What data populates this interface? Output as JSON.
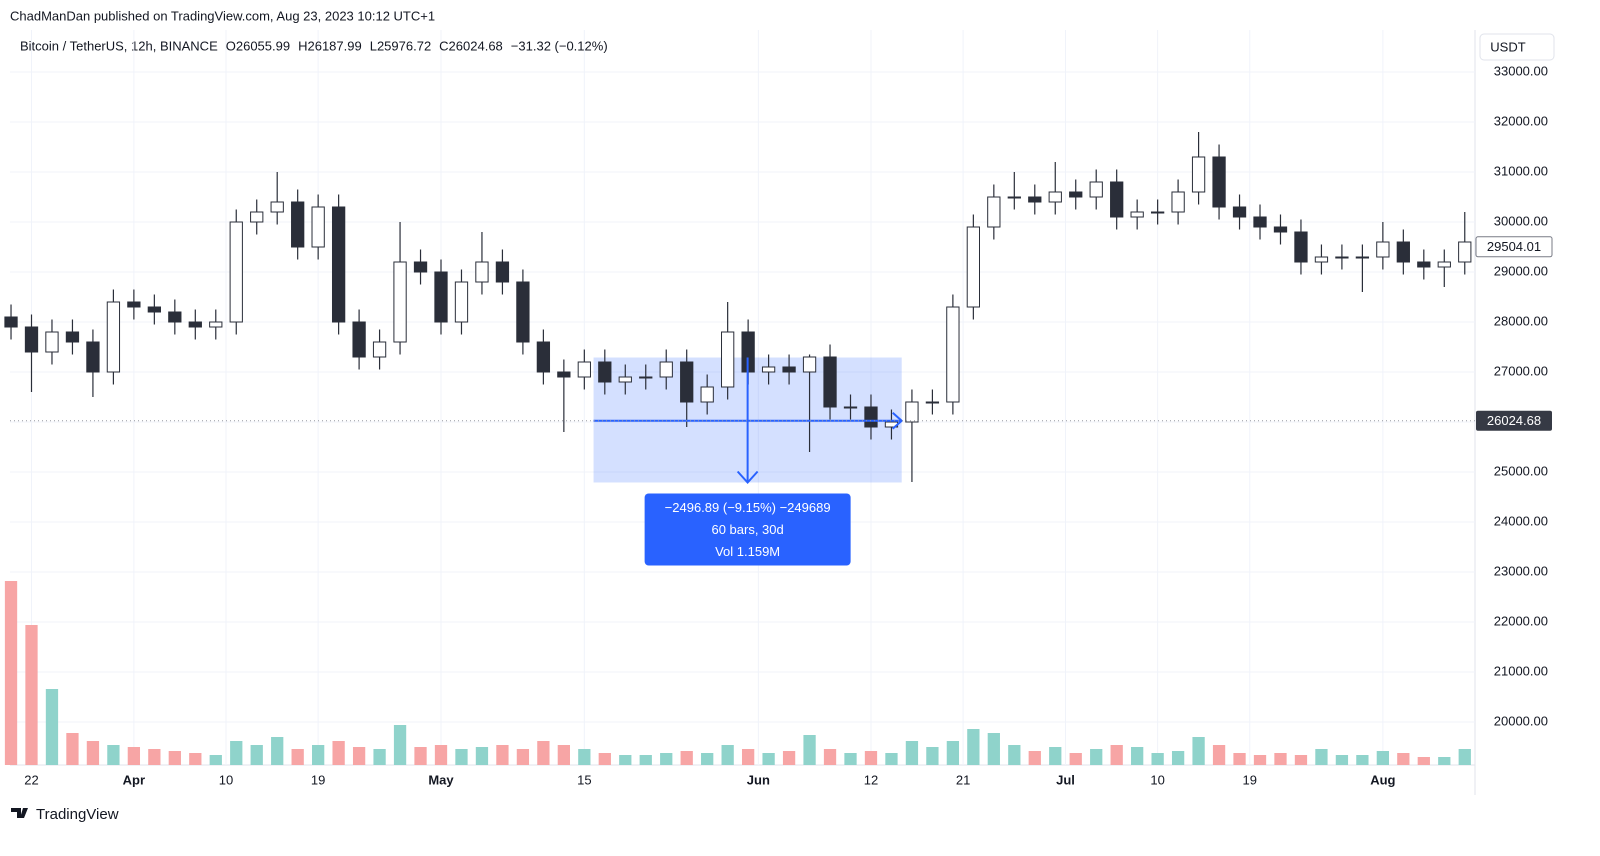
{
  "header": {
    "publisher": "ChadManDan published on TradingView.com, Aug 23, 2023 10:12 UTC+1",
    "symbol": "Bitcoin / TetherUS, 12h, BINANCE",
    "ohlc": [
      "O26055.99",
      "H26187.99",
      "L25976.72",
      "C26024.68",
      "−31.32 (−0.12%)"
    ],
    "currency": "USDT",
    "logo": "TradingView"
  },
  "chart_data": {
    "type": "candlestick",
    "x": [
      0,
      2,
      4,
      6,
      8,
      10,
      12,
      14,
      16,
      18,
      20,
      22,
      24,
      26,
      28,
      30,
      32,
      34,
      36,
      38,
      40,
      42,
      44,
      46,
      48,
      50,
      52,
      54,
      56,
      58,
      60,
      62,
      64,
      66,
      68,
      70,
      72,
      74,
      76,
      78,
      80,
      82,
      84,
      86,
      88,
      90,
      92,
      94,
      96,
      98,
      100,
      102,
      104,
      106,
      108,
      110,
      112,
      114,
      116,
      118,
      120,
      122,
      124,
      126,
      128,
      130,
      132,
      134,
      136,
      138,
      140,
      142
    ],
    "open": [
      28100,
      27900,
      27400,
      27800,
      27600,
      27000,
      28400,
      28300,
      28200,
      28000,
      27900,
      28000,
      30000,
      30200,
      30400,
      29500,
      30300,
      28000,
      27300,
      27600,
      29200,
      29000,
      28000,
      28800,
      29200,
      28800,
      27600,
      27000,
      26900,
      27200,
      26800,
      26900,
      26900,
      27200,
      26400,
      26700,
      27800,
      27000,
      27100,
      27000,
      27300,
      26300,
      26300,
      25900,
      26000,
      26400,
      26400,
      28300,
      29900,
      30500,
      30500,
      30400,
      30600,
      30500,
      30800,
      30100,
      30200,
      30200,
      30600,
      31300,
      30300,
      30100,
      29900,
      29800,
      29200,
      29300,
      29300,
      29300,
      29600,
      29200,
      29100,
      29200
    ],
    "high": [
      28350,
      28150,
      28050,
      28050,
      27850,
      28650,
      28650,
      28550,
      28450,
      28250,
      28250,
      30250,
      30450,
      31000,
      30650,
      30550,
      30550,
      28250,
      27850,
      30000,
      29450,
      29250,
      29050,
      29800,
      29450,
      29050,
      27850,
      27250,
      27450,
      27450,
      27150,
      27150,
      27450,
      27450,
      26950,
      28400,
      28050,
      27350,
      27350,
      27350,
      27550,
      26550,
      26550,
      26250,
      26650,
      26650,
      28550,
      30150,
      30750,
      31000,
      30750,
      31200,
      30850,
      31050,
      31050,
      30450,
      30450,
      30850,
      31800,
      31550,
      30550,
      30350,
      30150,
      30050,
      29550,
      29550,
      29550,
      30000,
      29850,
      29450,
      29450,
      30200
    ],
    "low": [
      27650,
      26600,
      27150,
      27350,
      26500,
      26750,
      28050,
      27950,
      27750,
      27650,
      27650,
      27750,
      29750,
      29950,
      29250,
      29250,
      27750,
      27050,
      27050,
      27350,
      28750,
      27750,
      27750,
      28550,
      28550,
      27350,
      26750,
      25800,
      26650,
      26550,
      26550,
      26650,
      26650,
      25900,
      26150,
      26450,
      26750,
      26750,
      26750,
      25400,
      26050,
      26050,
      25650,
      25650,
      24800,
      26150,
      26150,
      28050,
      29650,
      30250,
      30150,
      30150,
      30250,
      30250,
      29850,
      29850,
      29950,
      29950,
      30350,
      30050,
      29850,
      29650,
      29550,
      28950,
      28950,
      29050,
      28600,
      29050,
      28950,
      28850,
      28700,
      28950
    ],
    "close": [
      27900,
      27400,
      27800,
      27600,
      27000,
      28400,
      28300,
      28200,
      28000,
      27900,
      28000,
      30000,
      30200,
      30400,
      29500,
      30300,
      28000,
      27300,
      27600,
      29200,
      29000,
      28000,
      28800,
      29200,
      28800,
      27600,
      27000,
      26900,
      27200,
      26800,
      26900,
      26900,
      27200,
      26400,
      26700,
      27800,
      27000,
      27100,
      27000,
      27300,
      26300,
      26300,
      25900,
      26000,
      26400,
      26400,
      28300,
      29900,
      30500,
      30500,
      30400,
      30600,
      30500,
      30800,
      30100,
      30200,
      30200,
      30600,
      31300,
      30300,
      30100,
      29900,
      29800,
      29200,
      29300,
      29300,
      29300,
      29600,
      29200,
      29100,
      29200,
      29600
    ],
    "volume": [
      92000,
      70000,
      38000,
      16000,
      12000,
      10000,
      9000,
      8000,
      7000,
      6000,
      5000,
      12000,
      10000,
      14000,
      8000,
      10000,
      12000,
      9000,
      8000,
      20000,
      9000,
      10000,
      8000,
      9000,
      10000,
      8000,
      12000,
      10000,
      8000,
      6000,
      5000,
      5000,
      6000,
      7000,
      6000,
      10000,
      8000,
      6000,
      7000,
      15000,
      8000,
      6000,
      7000,
      6000,
      12000,
      9000,
      12000,
      18000,
      16000,
      10000,
      7000,
      9000,
      6000,
      8000,
      10000,
      9000,
      6000,
      7000,
      14000,
      10000,
      6000,
      5000,
      6000,
      5000,
      8000,
      5000,
      5000,
      7000,
      6000,
      4000,
      4000,
      8000
    ],
    "up_color": "#ffffff",
    "down_color": "#2a2e39",
    "wick_color": "#2a2e39",
    "volume_up_color": "#8fd3cb",
    "volume_down_color": "#f7a5a5",
    "xlim": [
      -0.1,
      143
    ],
    "ylim": [
      19140,
      33740
    ],
    "vlim": [
      0,
      100000
    ],
    "xticks": [
      {
        "value": 2,
        "label": "22"
      },
      {
        "value": 12,
        "label": "Apr"
      },
      {
        "value": 21,
        "label": "10"
      },
      {
        "value": 30,
        "label": "19"
      },
      {
        "value": 42,
        "label": "May"
      },
      {
        "value": 56,
        "label": "15"
      },
      {
        "value": 73,
        "label": "Jun"
      },
      {
        "value": 84,
        "label": "12"
      },
      {
        "value": 93,
        "label": "21"
      },
      {
        "value": 103,
        "label": "Jul"
      },
      {
        "value": 112,
        "label": "10"
      },
      {
        "value": 121,
        "label": "19"
      },
      {
        "value": 134,
        "label": "Aug"
      }
    ],
    "yticks": [
      {
        "value": 20000,
        "label": "20000.00"
      },
      {
        "value": 21000,
        "label": "21000.00"
      },
      {
        "value": 22000,
        "label": "22000.00"
      },
      {
        "value": 23000,
        "label": "23000.00"
      },
      {
        "value": 24000,
        "label": "24000.00"
      },
      {
        "value": 25000,
        "label": "25000.00"
      },
      {
        "value": 26000,
        "label": "26000.00"
      },
      {
        "value": 27000,
        "label": "27000.00"
      },
      {
        "value": 28000,
        "label": "28000.00"
      },
      {
        "value": 29000,
        "label": "29000.00"
      },
      {
        "value": 30000,
        "label": "30000.00"
      },
      {
        "value": 31000,
        "label": "31000.00"
      },
      {
        "value": 32000,
        "label": "32000.00"
      },
      {
        "value": 33000,
        "label": "33000.00"
      }
    ],
    "grid": true,
    "last_price": 26024.68,
    "marked_price": 29504.01,
    "measure": {
      "x0": 56.9,
      "x1": 87,
      "y0": 27290,
      "y1": 24790,
      "lines": [
        "−2496.89 (−9.15%) −249689",
        "60 bars, 30d",
        "Vol 1.159M"
      ],
      "color": "#2962ff"
    }
  }
}
